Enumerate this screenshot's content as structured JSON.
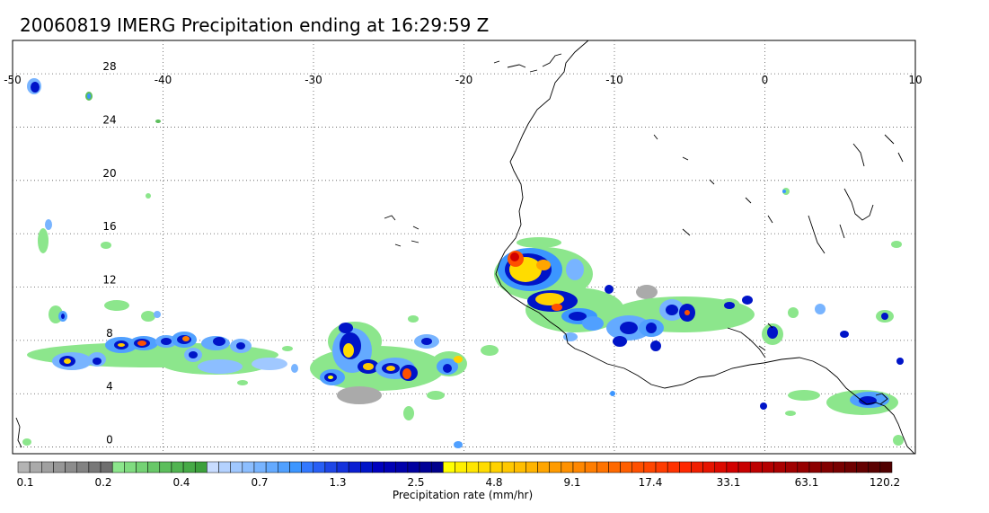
{
  "title": "20060819 IMERG Precipitation ending at 16:29:59 Z",
  "map": {
    "lon_range": [
      -50,
      10
    ],
    "lat_range": [
      -0.5,
      30.5
    ],
    "lon_ticks": [
      -50,
      -40,
      -30,
      -20,
      -10,
      0,
      10
    ],
    "lat_ticks": [
      0,
      4,
      8,
      12,
      16,
      20,
      24,
      28
    ],
    "grid": true,
    "coastline_color": "#000000"
  },
  "colorbar": {
    "label": "Precipitation rate (mm/hr)",
    "tick_labels": [
      "0.1",
      "0.2",
      "0.4",
      "0.7",
      "1.3",
      "2.5",
      "4.8",
      "9.1",
      "17.4",
      "33.1",
      "63.1",
      "120.2"
    ],
    "colors": [
      "#b4b4b4",
      "#aaaaaa",
      "#a0a0a0",
      "#969696",
      "#8c8c8c",
      "#828282",
      "#787878",
      "#6e6e6e",
      "#8ce68c",
      "#80dc80",
      "#74d274",
      "#68c868",
      "#5cbe5c",
      "#50b450",
      "#46aa46",
      "#3ca03c",
      "#c8dcff",
      "#b4d2ff",
      "#a0c8ff",
      "#8cbeff",
      "#78b4ff",
      "#64aaff",
      "#50a0ff",
      "#3c96ff",
      "#3278ff",
      "#285ff5",
      "#1e46e6",
      "#1432dc",
      "#0a1ed2",
      "#0014c8",
      "#0000be",
      "#0000b4",
      "#0000aa",
      "#0000a0",
      "#000096",
      "#00008c",
      "#ffff00",
      "#fff000",
      "#ffe600",
      "#ffdc00",
      "#ffd200",
      "#ffc800",
      "#ffbe00",
      "#ffb400",
      "#ffa500",
      "#ff9b00",
      "#ff9100",
      "#ff8700",
      "#ff7d00",
      "#ff7300",
      "#ff6900",
      "#ff5f00",
      "#ff5000",
      "#ff4600",
      "#ff3c00",
      "#ff3200",
      "#ff2800",
      "#f01e00",
      "#e61400",
      "#dc0a00",
      "#d20000",
      "#c80000",
      "#be0000",
      "#b40000",
      "#aa0000",
      "#a00000",
      "#960000",
      "#8c0000",
      "#820000",
      "#780000",
      "#6e0000",
      "#640000",
      "#5a0000",
      "#500000"
    ]
  }
}
